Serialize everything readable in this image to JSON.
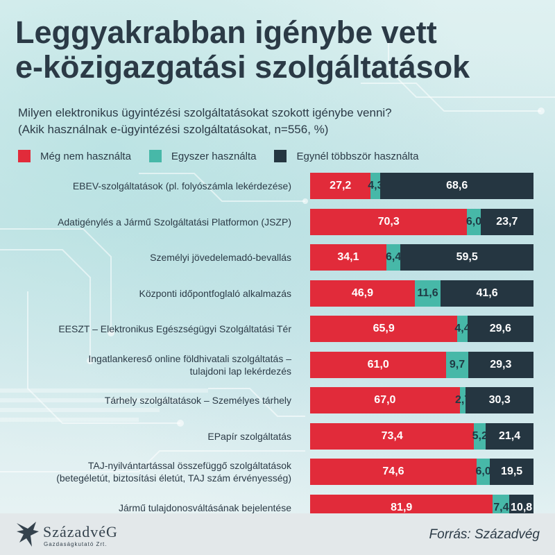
{
  "title_lines": [
    "Leggyakrabban igénybe vett",
    "e-közigazgatási szolgáltatások"
  ],
  "subtitle_lines": [
    "Milyen elektronikus ügyintézési szolgáltatásokat szokott igénybe venni?",
    "(Akik használnak e-ügyintézési szolgáltatásokat, n=556, %)"
  ],
  "colors": {
    "red": "#e12b3a",
    "teal": "#47b8a8",
    "dark": "#253641"
  },
  "logo": {
    "name": "SzázadvéG",
    "sub": "Gazdaságkutató Zrt."
  },
  "source": "Forrás: Századvég",
  "chart_data": {
    "type": "bar",
    "orientation": "horizontal",
    "stacked": true,
    "legend_position": "top-left",
    "series": [
      {
        "name": "Még nem használta",
        "color": "#e12b3a",
        "values": [
          27.2,
          70.3,
          34.1,
          46.9,
          65.9,
          61.0,
          67.0,
          73.4,
          74.6,
          81.9
        ]
      },
      {
        "name": "Egyszer használta",
        "color": "#47b8a8",
        "values": [
          4.3,
          6.0,
          6.4,
          11.6,
          4.4,
          9.7,
          2.7,
          5.2,
          6.0,
          7.4
        ]
      },
      {
        "name": "Egynél többször használta",
        "color": "#253641",
        "values": [
          68.6,
          23.7,
          59.5,
          41.6,
          29.6,
          29.3,
          30.3,
          21.4,
          19.5,
          10.8
        ]
      }
    ],
    "categories": [
      [
        "EBEV-szolgáltatások (pl. folyószámla lekérdezése)"
      ],
      [
        "Adatigénylés a Jármű Szolgáltatási Platformon (JSZP)"
      ],
      [
        "Személyi jövedelemadó-bevallás"
      ],
      [
        "Központi időpontfoglaló alkalmazás"
      ],
      [
        "EESZT – Elektronikus Egészségügyi Szolgáltatási Tér"
      ],
      [
        "Ingatlankereső online földhivatali szolgáltatás –",
        "tulajdoni lap lekérdezés"
      ],
      [
        "Tárhely szolgáltatások – Személyes tárhely"
      ],
      [
        "EPapír szolgáltatás"
      ],
      [
        "TAJ-nyilvántartással összefüggő szolgáltatások",
        "(betegéletút, biztosítási életút, TAJ szám érvényesség)"
      ],
      [
        "Jármű tulajdonosváltásának bejelentése"
      ]
    ],
    "value_labels": [
      [
        "27,2",
        "4,3",
        "68,6"
      ],
      [
        "70,3",
        "6,0",
        "23,7"
      ],
      [
        "34,1",
        "6,4",
        "59,5"
      ],
      [
        "46,9",
        "11,6",
        "41,6"
      ],
      [
        "65,9",
        "4,4",
        "29,6"
      ],
      [
        "61,0",
        "9,7",
        "29,3"
      ],
      [
        "67,0",
        "2,7",
        "30,3"
      ],
      [
        "73,4",
        "5,2",
        "21,4"
      ],
      [
        "74,6",
        "6,0",
        "19,5"
      ],
      [
        "81,9",
        "7,4",
        "10,8"
      ]
    ]
  }
}
